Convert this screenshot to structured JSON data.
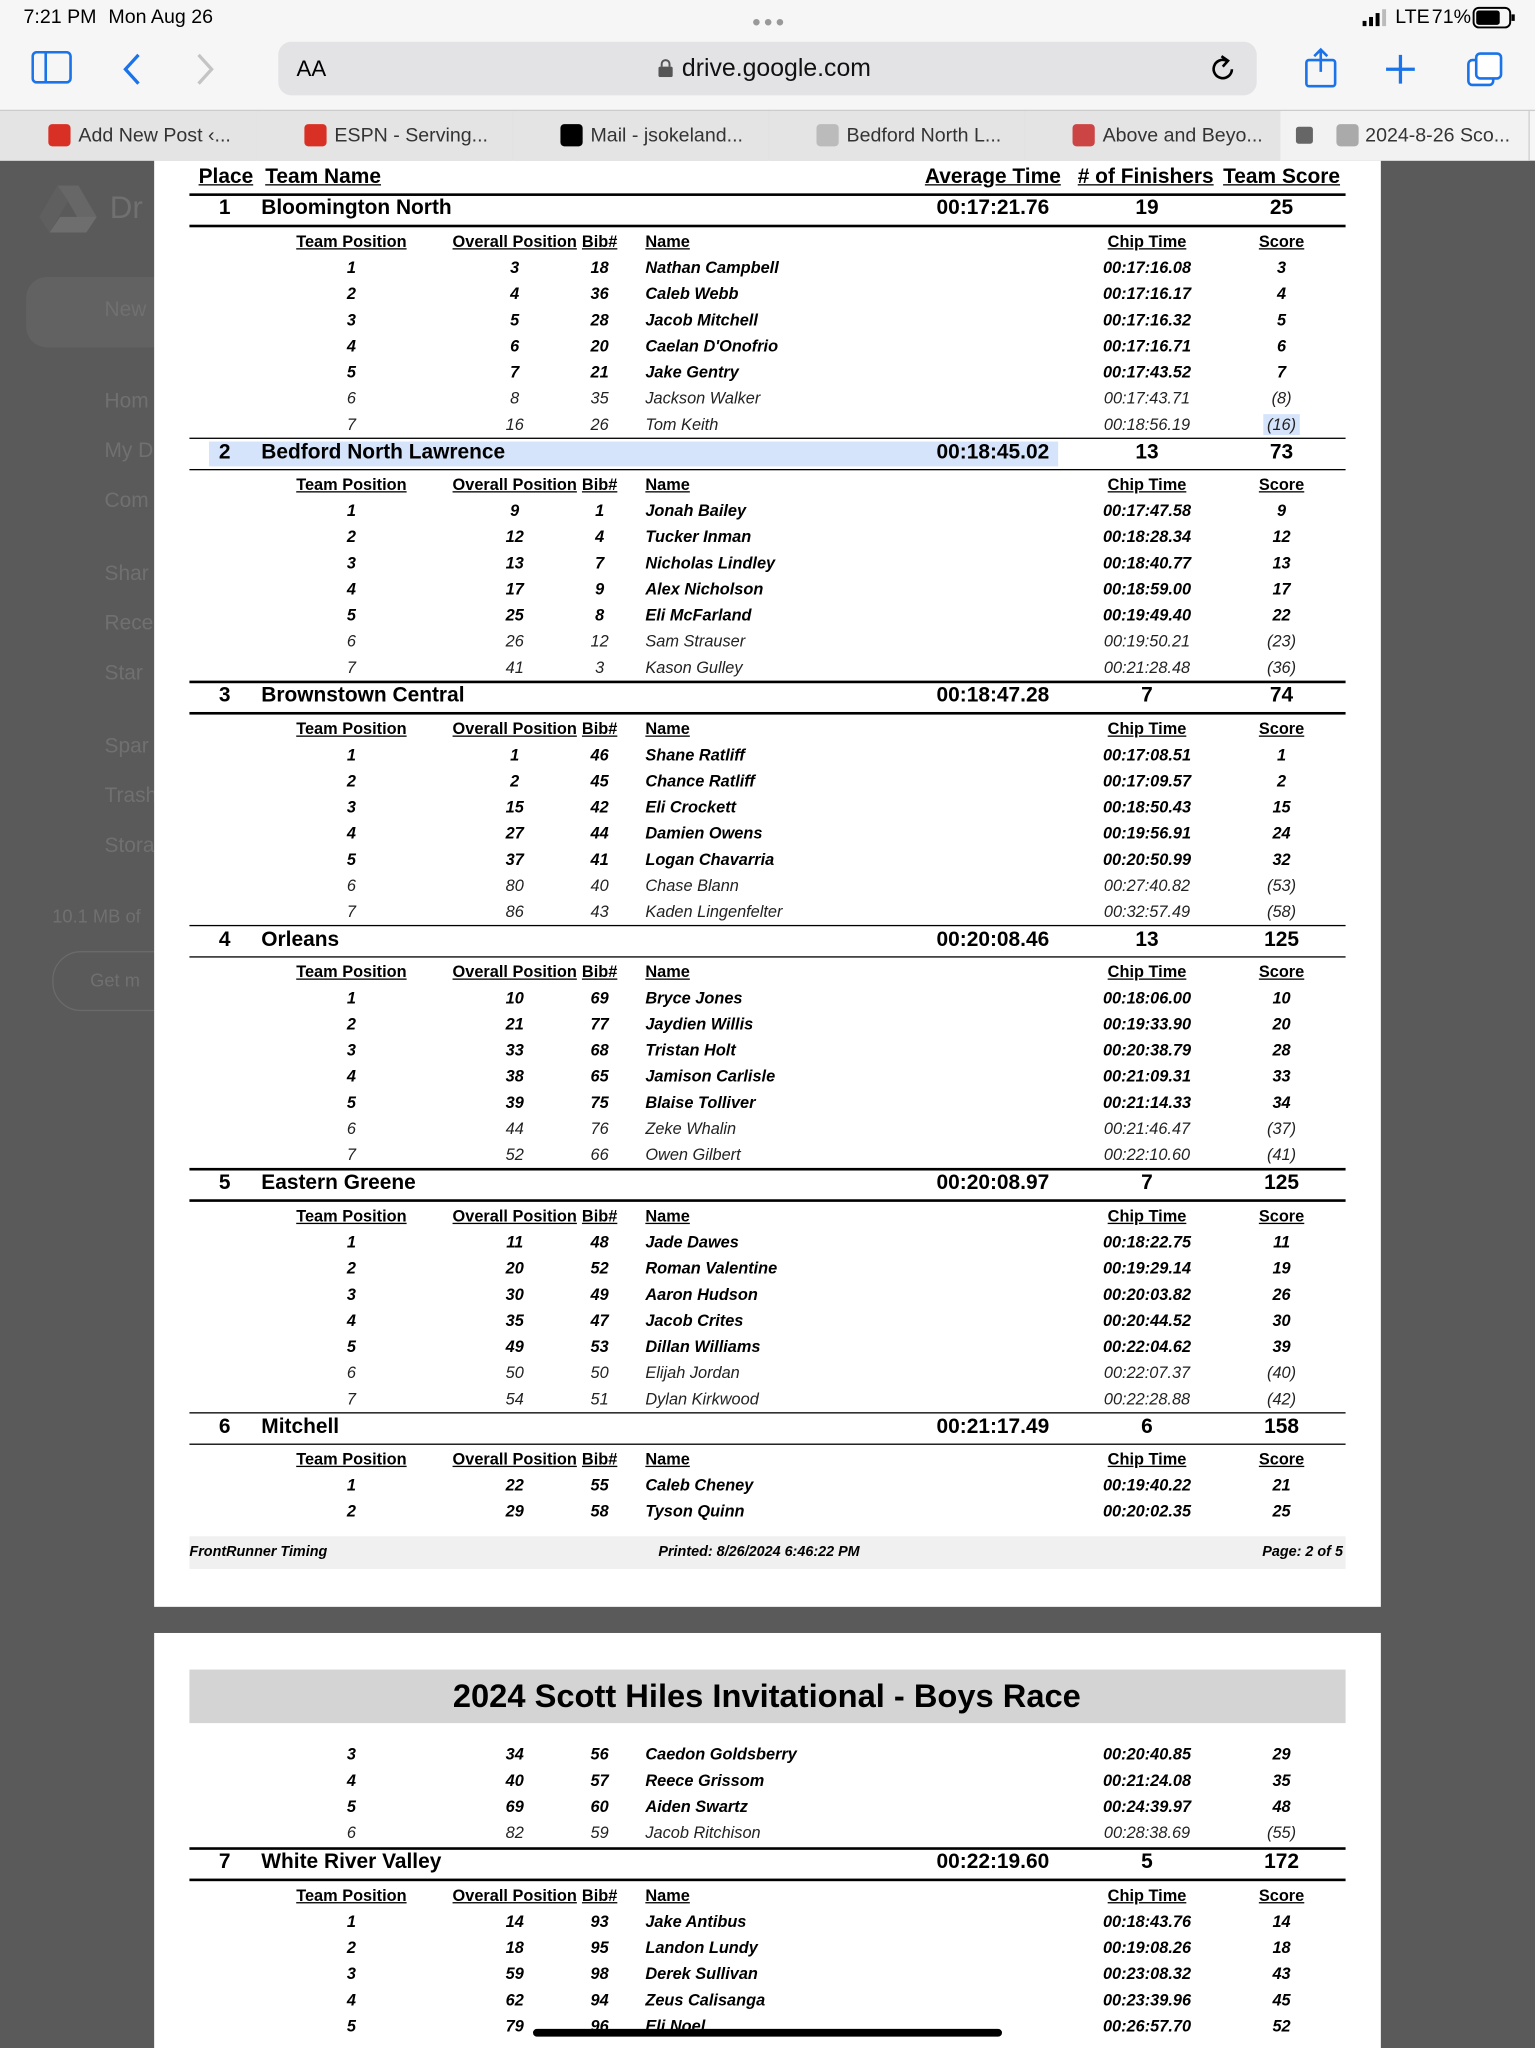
{
  "status": {
    "time": "7:21 PM",
    "date": "Mon Aug 26",
    "network": "LTE",
    "battery": "71%"
  },
  "browser": {
    "text_size": "AA",
    "url": "drive.google.com",
    "tabs": [
      "Add New Post ‹...",
      "ESPN - Serving...",
      "Mail - jsokeland...",
      "Bedford North L...",
      "Above and Beyo...",
      "2024-8-26 Sco..."
    ]
  },
  "drive_sidebar": [
    "Dr",
    "New",
    "Hom",
    "My D",
    "Com",
    "Shar",
    "Rece",
    "Star",
    "Spar",
    "Trash",
    "Stora",
    "10.1 MB of",
    "Get m"
  ],
  "results": {
    "columns": [
      "Place",
      "Team Name",
      "Average Time",
      "# of Finishers",
      "Team Score"
    ],
    "runner_columns": [
      "Team Position",
      "Overall Position",
      "Bib#",
      "Name",
      "Chip Time",
      "Score"
    ],
    "teams": [
      {
        "place": 1,
        "name": "Bloomington North",
        "average_time": "00:17:21.76",
        "finishers": 19,
        "score": 25,
        "runners": [
          [
            1,
            3,
            18,
            "Nathan Campbell",
            "00:17:16.08",
            3
          ],
          [
            2,
            4,
            36,
            "Caleb Webb",
            "00:17:16.17",
            4
          ],
          [
            3,
            5,
            28,
            "Jacob Mitchell",
            "00:17:16.32",
            5
          ],
          [
            4,
            6,
            20,
            "Caelan D'Onofrio",
            "00:17:16.71",
            6
          ],
          [
            5,
            7,
            21,
            "Jake Gentry",
            "00:17:43.52",
            7
          ],
          [
            6,
            8,
            35,
            "Jackson Walker",
            "00:17:43.71",
            "(8)"
          ],
          [
            7,
            16,
            26,
            "Tom Keith",
            "00:18:56.19",
            "(16)"
          ]
        ]
      },
      {
        "place": 2,
        "name": "Bedford North Lawrence",
        "average_time": "00:18:45.02",
        "finishers": 13,
        "score": 73,
        "runners": [
          [
            1,
            9,
            1,
            "Jonah Bailey",
            "00:17:47.58",
            9
          ],
          [
            2,
            12,
            4,
            "Tucker Inman",
            "00:18:28.34",
            12
          ],
          [
            3,
            13,
            7,
            "Nicholas Lindley",
            "00:18:40.77",
            13
          ],
          [
            4,
            17,
            9,
            "Alex Nicholson",
            "00:18:59.00",
            17
          ],
          [
            5,
            25,
            8,
            "Eli McFarland",
            "00:19:49.40",
            22
          ],
          [
            6,
            26,
            12,
            "Sam Strauser",
            "00:19:50.21",
            "(23)"
          ],
          [
            7,
            41,
            3,
            "Kason Gulley",
            "00:21:28.48",
            "(36)"
          ]
        ]
      },
      {
        "place": 3,
        "name": "Brownstown Central",
        "average_time": "00:18:47.28",
        "finishers": 7,
        "score": 74,
        "runners": [
          [
            1,
            1,
            46,
            "Shane Ratliff",
            "00:17:08.51",
            1
          ],
          [
            2,
            2,
            45,
            "Chance Ratliff",
            "00:17:09.57",
            2
          ],
          [
            3,
            15,
            42,
            "Eli Crockett",
            "00:18:50.43",
            15
          ],
          [
            4,
            27,
            44,
            "Damien Owens",
            "00:19:56.91",
            24
          ],
          [
            5,
            37,
            41,
            "Logan Chavarria",
            "00:20:50.99",
            32
          ],
          [
            6,
            80,
            40,
            "Chase Blann",
            "00:27:40.82",
            "(53)"
          ],
          [
            7,
            86,
            43,
            "Kaden Lingenfelter",
            "00:32:57.49",
            "(58)"
          ]
        ]
      },
      {
        "place": 4,
        "name": "Orleans",
        "average_time": "00:20:08.46",
        "finishers": 13,
        "score": 125,
        "runners": [
          [
            1,
            10,
            69,
            "Bryce Jones",
            "00:18:06.00",
            10
          ],
          [
            2,
            21,
            77,
            "Jaydien Willis",
            "00:19:33.90",
            20
          ],
          [
            3,
            33,
            68,
            "Tristan Holt",
            "00:20:38.79",
            28
          ],
          [
            4,
            38,
            65,
            "Jamison Carlisle",
            "00:21:09.31",
            33
          ],
          [
            5,
            39,
            75,
            "Blaise Tolliver",
            "00:21:14.33",
            34
          ],
          [
            6,
            44,
            76,
            "Zeke Whalin",
            "00:21:46.47",
            "(37)"
          ],
          [
            7,
            52,
            66,
            "Owen Gilbert",
            "00:22:10.60",
            "(41)"
          ]
        ]
      },
      {
        "place": 5,
        "name": "Eastern Greene",
        "average_time": "00:20:08.97",
        "finishers": 7,
        "score": 125,
        "runners": [
          [
            1,
            11,
            48,
            "Jade Dawes",
            "00:18:22.75",
            11
          ],
          [
            2,
            20,
            52,
            "Roman Valentine",
            "00:19:29.14",
            19
          ],
          [
            3,
            30,
            49,
            "Aaron Hudson",
            "00:20:03.82",
            26
          ],
          [
            4,
            35,
            47,
            "Jacob Crites",
            "00:20:44.52",
            30
          ],
          [
            5,
            49,
            53,
            "Dillan Williams",
            "00:22:04.62",
            39
          ],
          [
            6,
            50,
            50,
            "Elijah Jordan",
            "00:22:07.37",
            "(40)"
          ],
          [
            7,
            54,
            51,
            "Dylan Kirkwood",
            "00:22:28.88",
            "(42)"
          ]
        ]
      },
      {
        "place": 6,
        "name": "Mitchell",
        "average_time": "00:21:17.49",
        "finishers": 6,
        "score": 158,
        "runners": [
          [
            1,
            22,
            55,
            "Caleb Cheney",
            "00:19:40.22",
            21
          ],
          [
            2,
            29,
            58,
            "Tyson Quinn",
            "00:20:02.35",
            25
          ]
        ]
      }
    ],
    "footer": {
      "left": "FrontRunner Timing",
      "center": "Printed: 8/26/2024 6:46:22 PM",
      "right": "Page: 2 of 5"
    }
  },
  "page2": {
    "title": "2024 Scott Hiles Invitational - Boys Race",
    "continued_runners": [
      [
        3,
        34,
        56,
        "Caedon Goldsberry",
        "00:20:40.85",
        29
      ],
      [
        4,
        40,
        57,
        "Reece Grissom",
        "00:21:24.08",
        35
      ],
      [
        5,
        69,
        60,
        "Aiden Swartz",
        "00:24:39.97",
        48
      ],
      [
        6,
        82,
        59,
        "Jacob Ritchison",
        "00:28:38.69",
        "(55)"
      ]
    ],
    "teams": [
      {
        "place": 7,
        "name": "White River Valley",
        "average_time": "00:22:19.60",
        "finishers": 5,
        "score": 172,
        "runners": [
          [
            1,
            14,
            93,
            "Jake Antibus",
            "00:18:43.76",
            14
          ],
          [
            2,
            18,
            95,
            "Landon Lundy",
            "00:19:08.26",
            18
          ],
          [
            3,
            59,
            98,
            "Derek Sullivan",
            "00:23:08.32",
            43
          ],
          [
            4,
            62,
            94,
            "Zeus Calisanga",
            "00:23:39.96",
            45
          ],
          [
            5,
            79,
            96,
            "Eli Noel",
            "00:26:57.70",
            52
          ]
        ]
      }
    ]
  }
}
